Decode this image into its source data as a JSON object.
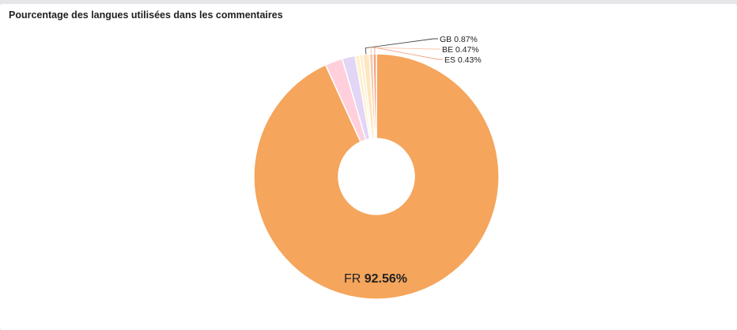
{
  "panel": {
    "title": "Pourcentage des langues utilisées dans les commentaires"
  },
  "chart_data": {
    "type": "pie",
    "donut": true,
    "title": "Pourcentage des langues utilisées dans les commentaires",
    "start_angle_deg": -90,
    "slices": [
      {
        "label": "FR",
        "value": 92.56,
        "display": "92.56%",
        "color": "#f5a55c"
      },
      {
        "label": "",
        "value": 2.3,
        "display": "",
        "color": "#ffd0dc"
      },
      {
        "label": "",
        "value": 1.7,
        "display": "",
        "color": "#e2d5f5"
      },
      {
        "label": "",
        "value": 0.6,
        "display": "",
        "color": "#fff1c8"
      },
      {
        "label": "",
        "value": 0.4,
        "display": "",
        "color": "#fbe9c4"
      },
      {
        "label": "GB",
        "value": 0.87,
        "display": "0.87%",
        "color": "#fde7c0"
      },
      {
        "label": "BE",
        "value": 0.47,
        "display": "0.47%",
        "color": "#f8c7a8"
      },
      {
        "label": "ES",
        "value": 0.43,
        "display": "0.43%",
        "color": "#f1a285"
      }
    ]
  }
}
